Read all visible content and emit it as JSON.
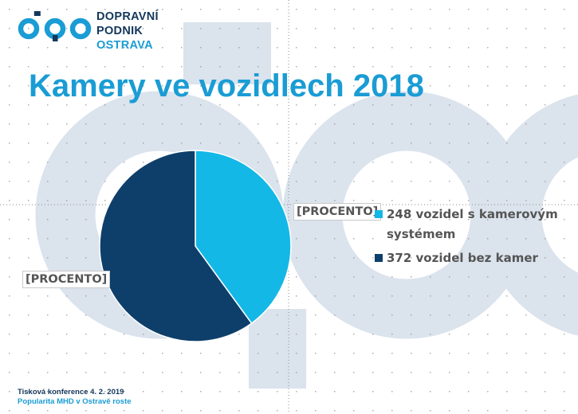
{
  "colors": {
    "brand": "#1a9cd4",
    "navy": "#13375c",
    "cyan": "#14b8e6",
    "dark_navy": "#0e3f6b",
    "watermark": "#dbe3ed"
  },
  "logo": {
    "line1": "DOPRAVNÍ",
    "line2": "PODNIK",
    "line3": "OSTRAVA"
  },
  "slide": {
    "title": "Kamery ve vozidlech 2018"
  },
  "chart_data": {
    "type": "pie",
    "title": "",
    "slices": [
      {
        "label": "248 vozidel s kamerovým systémem",
        "value": 248,
        "data_label": "[PROCENTO]",
        "color": "#14b8e6"
      },
      {
        "label": "372 vozidel bez kamer",
        "value": 372,
        "data_label": "[PROCENTO]",
        "color": "#0e3f6b"
      }
    ],
    "legend_position": "right"
  },
  "footer": {
    "line1": "Tisková konference 4. 2. 2019",
    "line2": "Popularita MHD v Ostravě roste"
  }
}
